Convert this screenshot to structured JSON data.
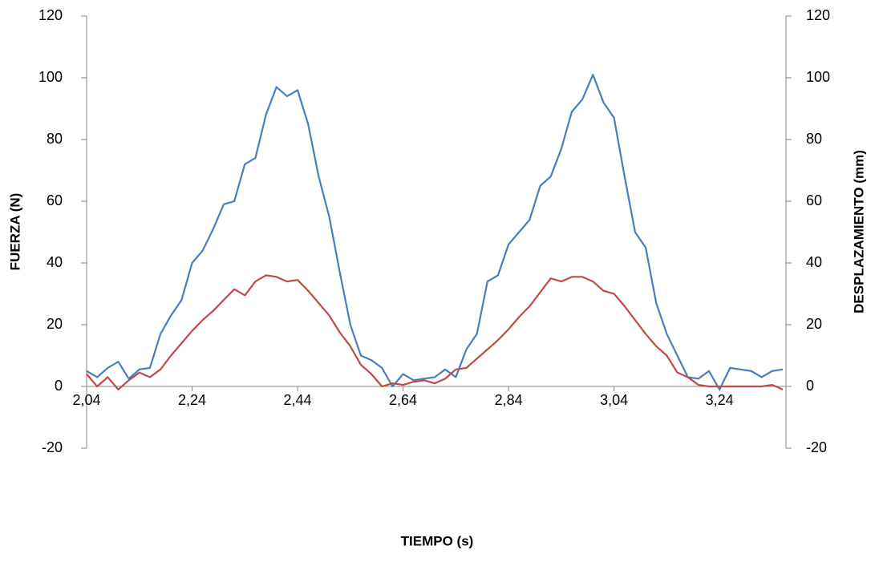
{
  "chart_data": {
    "type": "line",
    "xlabel": "TIEMPO (s)",
    "ylabel": "FUERZA (N)",
    "y2label": "DESPLAZAMIENTO (mm)",
    "x": [
      2.04,
      2.06,
      2.08,
      2.1,
      2.12,
      2.14,
      2.16,
      2.18,
      2.2,
      2.22,
      2.24,
      2.26,
      2.28,
      2.3,
      2.32,
      2.34,
      2.36,
      2.38,
      2.4,
      2.42,
      2.44,
      2.46,
      2.48,
      2.5,
      2.52,
      2.54,
      2.56,
      2.58,
      2.6,
      2.62,
      2.64,
      2.66,
      2.68,
      2.7,
      2.72,
      2.74,
      2.76,
      2.78,
      2.8,
      2.82,
      2.84,
      2.86,
      2.88,
      2.9,
      2.92,
      2.94,
      2.96,
      2.98,
      3.0,
      3.02,
      3.04,
      3.06,
      3.08,
      3.1,
      3.12,
      3.14,
      3.16,
      3.18,
      3.2,
      3.22,
      3.24,
      3.26,
      3.28,
      3.3,
      3.32,
      3.34,
      3.36
    ],
    "series": [
      {
        "color": "#4a7ebb",
        "values": [
          5,
          3,
          6,
          8,
          2.5,
          5.5,
          6,
          17,
          23,
          28,
          40,
          44,
          51,
          59,
          60,
          72,
          74,
          88,
          97,
          94,
          96,
          85,
          68,
          55,
          37,
          20,
          10,
          8.5,
          6,
          0,
          4,
          2,
          2.5,
          3,
          5.5,
          3,
          12,
          17,
          34,
          36,
          46,
          50,
          54,
          65,
          68,
          77,
          89,
          93,
          101,
          92,
          87,
          68,
          50,
          45,
          27,
          17,
          10,
          3,
          2.5,
          5,
          -1,
          6,
          5.5,
          5,
          3,
          5,
          5.5
        ]
      },
      {
        "color": "#be4b48",
        "axis": "y2",
        "values": [
          4,
          0,
          3,
          -1,
          2,
          4.5,
          3,
          5.5,
          10,
          14,
          18,
          21.5,
          24.5,
          28,
          31.5,
          29.5,
          34,
          36,
          35.5,
          34,
          34.5,
          31,
          27,
          23,
          17.5,
          13,
          7,
          4,
          0,
          1,
          0.5,
          1.5,
          2,
          1,
          2.5,
          5.5,
          6,
          9,
          12,
          15,
          18.5,
          22.5,
          26,
          30.5,
          35,
          34,
          35.5,
          35.5,
          34,
          31,
          30,
          26,
          21.5,
          17,
          13,
          10,
          4.5,
          3,
          0.5,
          0,
          0,
          0,
          0,
          0,
          0,
          0.5,
          -1
        ]
      }
    ],
    "xlim": [
      2.04,
      3.366
    ],
    "xticks": [
      {
        "value": 2.04,
        "label": "2,04"
      },
      {
        "value": 2.24,
        "label": "2,24"
      },
      {
        "value": 2.44,
        "label": "2,44"
      },
      {
        "value": 2.64,
        "label": "2,64"
      },
      {
        "value": 2.84,
        "label": "2,84"
      },
      {
        "value": 3.04,
        "label": "3,04"
      },
      {
        "value": 3.24,
        "label": "3,24"
      }
    ],
    "ylim": [
      -20,
      120
    ],
    "yticks": [
      -20,
      0,
      20,
      40,
      60,
      80,
      100,
      120
    ],
    "y2lim": [
      -20,
      120
    ],
    "y2ticks": [
      -20,
      0,
      20,
      40,
      60,
      80,
      100,
      120
    ]
  }
}
